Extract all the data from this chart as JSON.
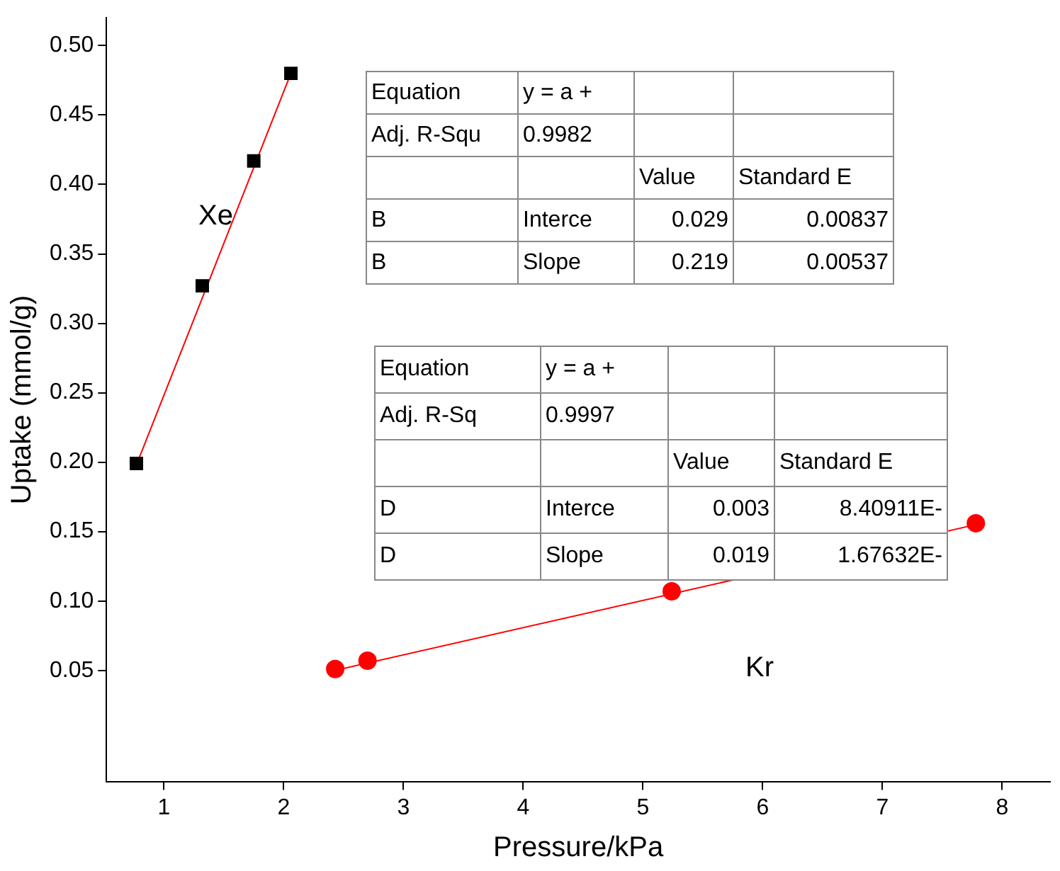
{
  "chart_data": {
    "type": "scatter",
    "xlabel": "Pressure/kPa",
    "ylabel": "Uptake (mmol/g)",
    "xlim": [
      0.52,
      8.4
    ],
    "ylim": [
      -0.03,
      0.52
    ],
    "xticks": [
      1,
      2,
      3,
      4,
      5,
      6,
      7,
      8
    ],
    "yticks": [
      0.05,
      {
        "value": 0.1,
        "label": "0.10"
      },
      0.15,
      {
        "value": 0.2,
        "label": "0.20"
      },
      0.25,
      {
        "value": 0.3,
        "label": "0.30"
      },
      0.35,
      {
        "value": 0.4,
        "label": "0.40"
      },
      0.45,
      {
        "value": 0.5,
        "label": "0.50"
      }
    ],
    "grid": false,
    "legend": false,
    "series": [
      {
        "type": "line",
        "color": "#ff0000",
        "x": [
          0.77,
          2.06
        ],
        "values": [
          0.198,
          0.48
        ],
        "marker": "none"
      },
      {
        "type": "line",
        "color": "#ff0000",
        "x": [
          2.43,
          7.78
        ],
        "values": [
          0.05,
          0.155
        ],
        "marker": "none"
      },
      {
        "type": "scatter",
        "color": "#000000",
        "marker": "square",
        "x": [
          0.77,
          1.32,
          1.75,
          2.06
        ],
        "values": [
          0.199,
          0.327,
          0.417,
          0.48
        ]
      },
      {
        "type": "scatter",
        "color": "#ff0000",
        "marker": "circle",
        "x": [
          2.43,
          2.7,
          5.24,
          7.78
        ],
        "values": [
          0.051,
          0.057,
          0.107,
          0.156
        ]
      }
    ],
    "annotations": [
      "Xe",
      "Kr",
      "Equation\ty = a +\t\t\nAdj. R-Squ\t0.9982\t\t\n\t\tValue\tStandard E\nB\tInterce\t0.029\t0.00837\nB\tSlope\t0.219\t0.00537",
      "Equation\ty = a +\t\t\nAdj. R-Sq\t0.9997\t\t\n\t\tValue\tStandard E\nD\tInterce\t0.003\t8.40911E-\nD\tSlope\t0.019\t1.67632E-"
    ]
  }
}
